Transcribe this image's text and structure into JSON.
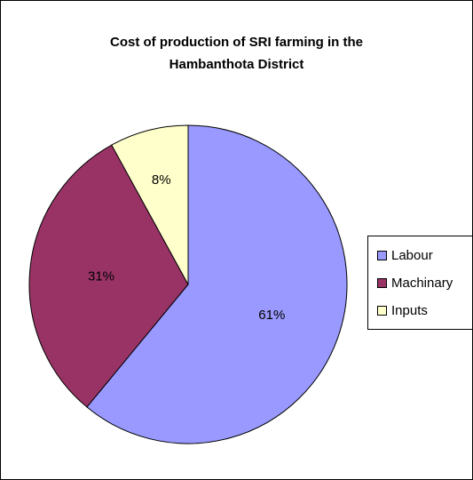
{
  "chart_data": {
    "type": "pie",
    "title_lines": [
      "Cost of production of SRI farming in the",
      "Hambanthota District"
    ],
    "categories": [
      "Labour",
      "Machinary",
      "Inputs"
    ],
    "values": [
      61,
      31,
      8
    ],
    "labels": [
      "61%",
      "31%",
      "8%"
    ],
    "colors": [
      "#9999FF",
      "#993366",
      "#FFFFCC"
    ],
    "start_angle": "12 o'clock, clockwise",
    "legend_position": "right"
  }
}
